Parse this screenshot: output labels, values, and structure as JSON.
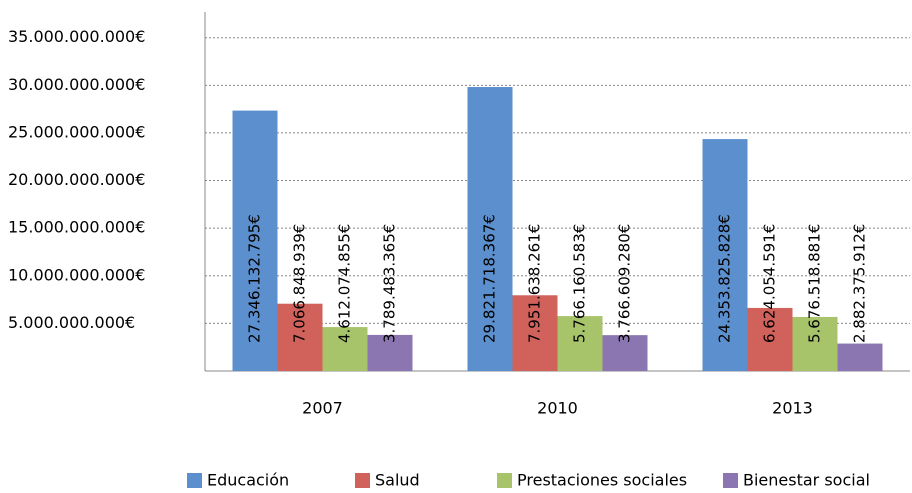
{
  "chart_data": {
    "type": "bar",
    "categories": [
      "2007",
      "2010",
      "2013"
    ],
    "series": [
      {
        "name": "Educación",
        "color": "#5b8fcd",
        "values": [
          27346132795,
          29821718367,
          24353825828
        ],
        "value_labels": [
          "27.346.132.795€",
          "29.821.718.367€",
          "24.353.825.828€"
        ]
      },
      {
        "name": "Salud",
        "color": "#d0615b",
        "values": [
          7066848939,
          7951638261,
          6624054591
        ],
        "value_labels": [
          "7.066.848.939€",
          "7.951.638.261€",
          "6.624.054.591€"
        ]
      },
      {
        "name": "Prestaciones sociales",
        "color": "#a8c46b",
        "values": [
          4612074855,
          5766160583,
          5676518881
        ],
        "value_labels": [
          "4.612.074.855€",
          "5.766.160.583€",
          "5.676.518.881€"
        ]
      },
      {
        "name": "Bienestar social",
        "color": "#8c76b2",
        "values": [
          3789483365,
          3766609280,
          2882375912
        ],
        "value_labels": [
          "3.789.483.365€",
          "3.766.609.280€",
          "2.882.375.912€"
        ]
      }
    ],
    "ylim": [
      0,
      37700000000
    ],
    "yticks": [
      {
        "value": 5000000000,
        "label": "5.000.000.000€"
      },
      {
        "value": 10000000000,
        "label": "10.000.000.000€"
      },
      {
        "value": 15000000000,
        "label": "15.000.000.000€"
      },
      {
        "value": 20000000000,
        "label": "20.000.000.000€"
      },
      {
        "value": 25000000000,
        "label": "25.000.000.000€"
      },
      {
        "value": 30000000000,
        "label": "30.000.000.000€"
      },
      {
        "value": 35000000000,
        "label": "35.000.000.000€"
      }
    ],
    "grid": true,
    "legend": "bottom"
  }
}
